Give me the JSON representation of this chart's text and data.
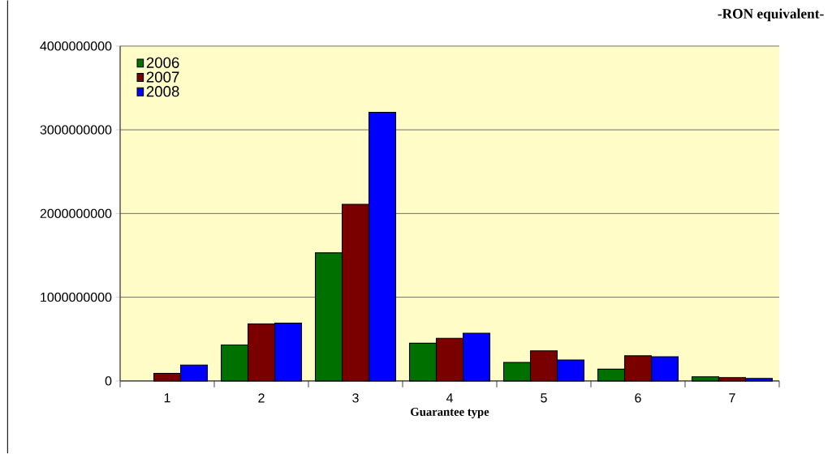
{
  "chart_data": {
    "type": "bar",
    "title": "-RON equivalent-",
    "xlabel": "Guarantee type",
    "categories": [
      "1",
      "2",
      "3",
      "4",
      "5",
      "6",
      "7"
    ],
    "series": [
      {
        "name": "2006",
        "color": "#007000",
        "values": [
          null,
          430000000,
          1530000000,
          450000000,
          220000000,
          140000000,
          50000000
        ]
      },
      {
        "name": "2007",
        "color": "#7a0000",
        "values": [
          90000000,
          680000000,
          2110000000,
          510000000,
          360000000,
          300000000,
          40000000
        ]
      },
      {
        "name": "2008",
        "color": "#0000ff",
        "values": [
          190000000,
          690000000,
          3210000000,
          570000000,
          250000000,
          290000000,
          30000000
        ]
      }
    ],
    "ylim": [
      0,
      4000000000
    ],
    "yticks": [
      0,
      1000000000,
      2000000000,
      3000000000,
      4000000000
    ],
    "grid": "y",
    "legend": "top left"
  }
}
